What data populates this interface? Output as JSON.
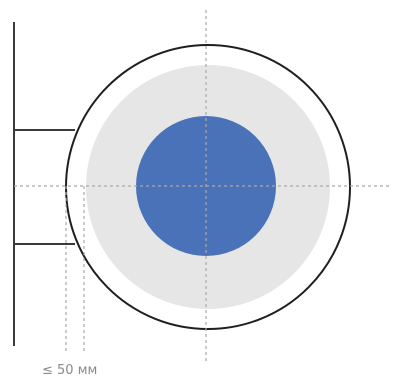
{
  "diagram": {
    "dimension_label": "≤ 50 мм",
    "colors": {
      "background": "#ffffff",
      "outer_ring_stroke": "#1f1f1f",
      "inner_disc": "#e6e6e6",
      "center_disc": "#4a72b9",
      "wall_and_brackets": "#3a3a3a",
      "guides": "#a9a9a9"
    }
  }
}
